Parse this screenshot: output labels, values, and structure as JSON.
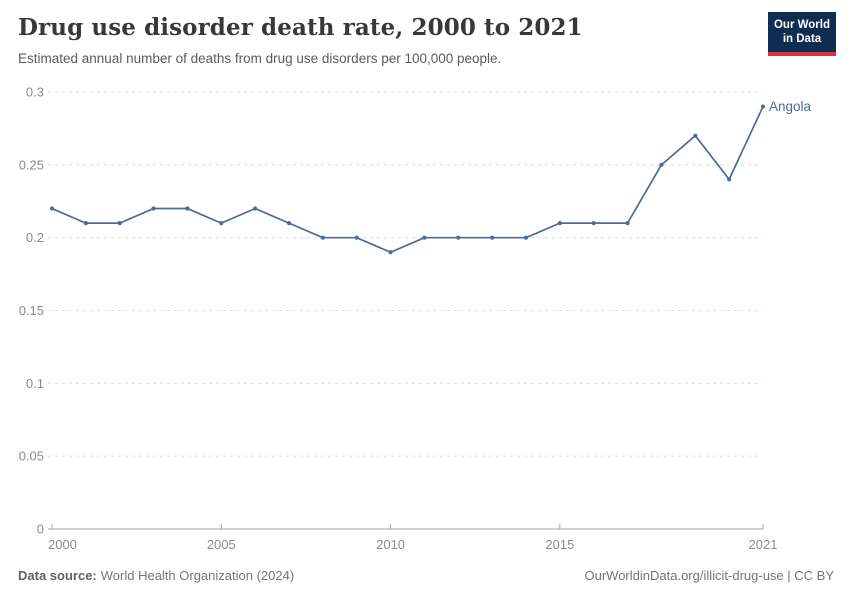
{
  "header": {
    "title": "Drug use disorder death rate, 2000 to 2021",
    "subtitle": "Estimated annual number of deaths from drug use disorders per 100,000 people.",
    "logo": {
      "line1": "Our World",
      "line2": "in Data",
      "bg_color": "#0f2d52",
      "bar_color": "#d8343c"
    }
  },
  "chart_data": {
    "type": "line",
    "title": "Drug use disorder death rate, 2000 to 2021",
    "xlabel": "",
    "ylabel": "",
    "x": [
      2000,
      2001,
      2002,
      2003,
      2004,
      2005,
      2006,
      2007,
      2008,
      2009,
      2010,
      2011,
      2012,
      2013,
      2014,
      2015,
      2016,
      2017,
      2018,
      2019,
      2020,
      2021
    ],
    "series": [
      {
        "name": "Angola",
        "color": "#4c6a9c",
        "values": [
          0.22,
          0.21,
          0.21,
          0.22,
          0.22,
          0.21,
          0.22,
          0.21,
          0.2,
          0.2,
          0.19,
          0.2,
          0.2,
          0.2,
          0.2,
          0.21,
          0.21,
          0.21,
          0.25,
          0.27,
          0.24,
          0.29
        ]
      }
    ],
    "ylim": [
      0,
      0.3
    ],
    "yticks": [
      0,
      0.05,
      0.1,
      0.15,
      0.2,
      0.25,
      0.3
    ],
    "xticks": [
      2000,
      2005,
      2010,
      2015,
      2021
    ],
    "grid": "horizontal-dashed",
    "grid_color": "#dcdcdc",
    "axis_color": "#a3a3a3",
    "tick_label_color": "#8c8c8c",
    "legend_position": "end-of-line-label"
  },
  "footer": {
    "data_source_label": "Data source:",
    "data_source_value": "World Health Organization (2024)",
    "license_text": "OurWorldinData.org/illicit-drug-use | CC BY"
  }
}
